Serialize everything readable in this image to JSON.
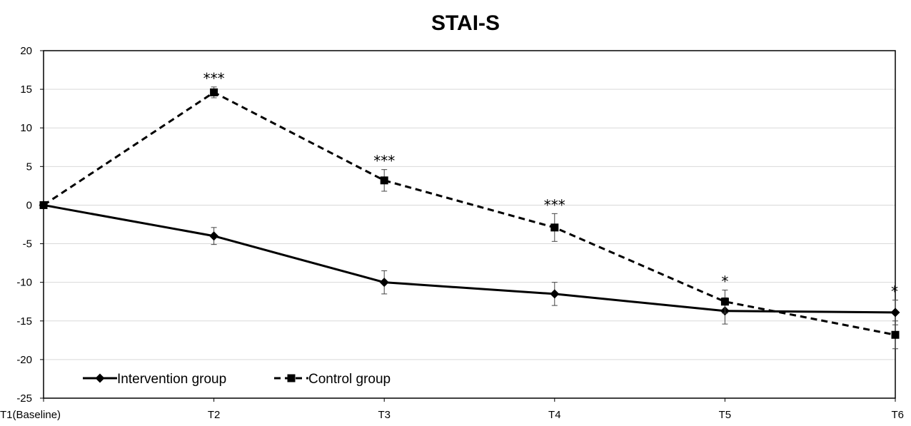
{
  "chart_data": {
    "type": "line",
    "title": "STAI-S",
    "xlabel": "",
    "ylabel": "",
    "categories": [
      "T1(Baseline)",
      "T2",
      "T3",
      "T4",
      "T5",
      "T6"
    ],
    "ylim": [
      -25,
      20
    ],
    "yticks": [
      20,
      15,
      10,
      5,
      0,
      -5,
      -10,
      -15,
      -20,
      -25
    ],
    "grid": true,
    "legend_position": "bottom-left",
    "series": [
      {
        "name": "Intervention group",
        "line_style": "solid",
        "marker": "diamond",
        "color": "#000000",
        "values": [
          0,
          -4.0,
          -10.0,
          -11.5,
          -13.7,
          -13.9
        ],
        "error": [
          0,
          1.1,
          1.5,
          1.5,
          1.7,
          1.6
        ]
      },
      {
        "name": "Control group",
        "line_style": "dashed",
        "marker": "square",
        "color": "#000000",
        "values": [
          0,
          14.6,
          3.2,
          -2.9,
          -12.5,
          -16.8
        ],
        "error": [
          0,
          0.7,
          1.4,
          1.8,
          1.5,
          1.8
        ]
      }
    ],
    "annotations": [
      {
        "category": "T2",
        "text": "***"
      },
      {
        "category": "T3",
        "text": "***"
      },
      {
        "category": "T4",
        "text": "***"
      },
      {
        "category": "T5",
        "text": "*"
      },
      {
        "category": "T6",
        "text": "*"
      }
    ]
  }
}
